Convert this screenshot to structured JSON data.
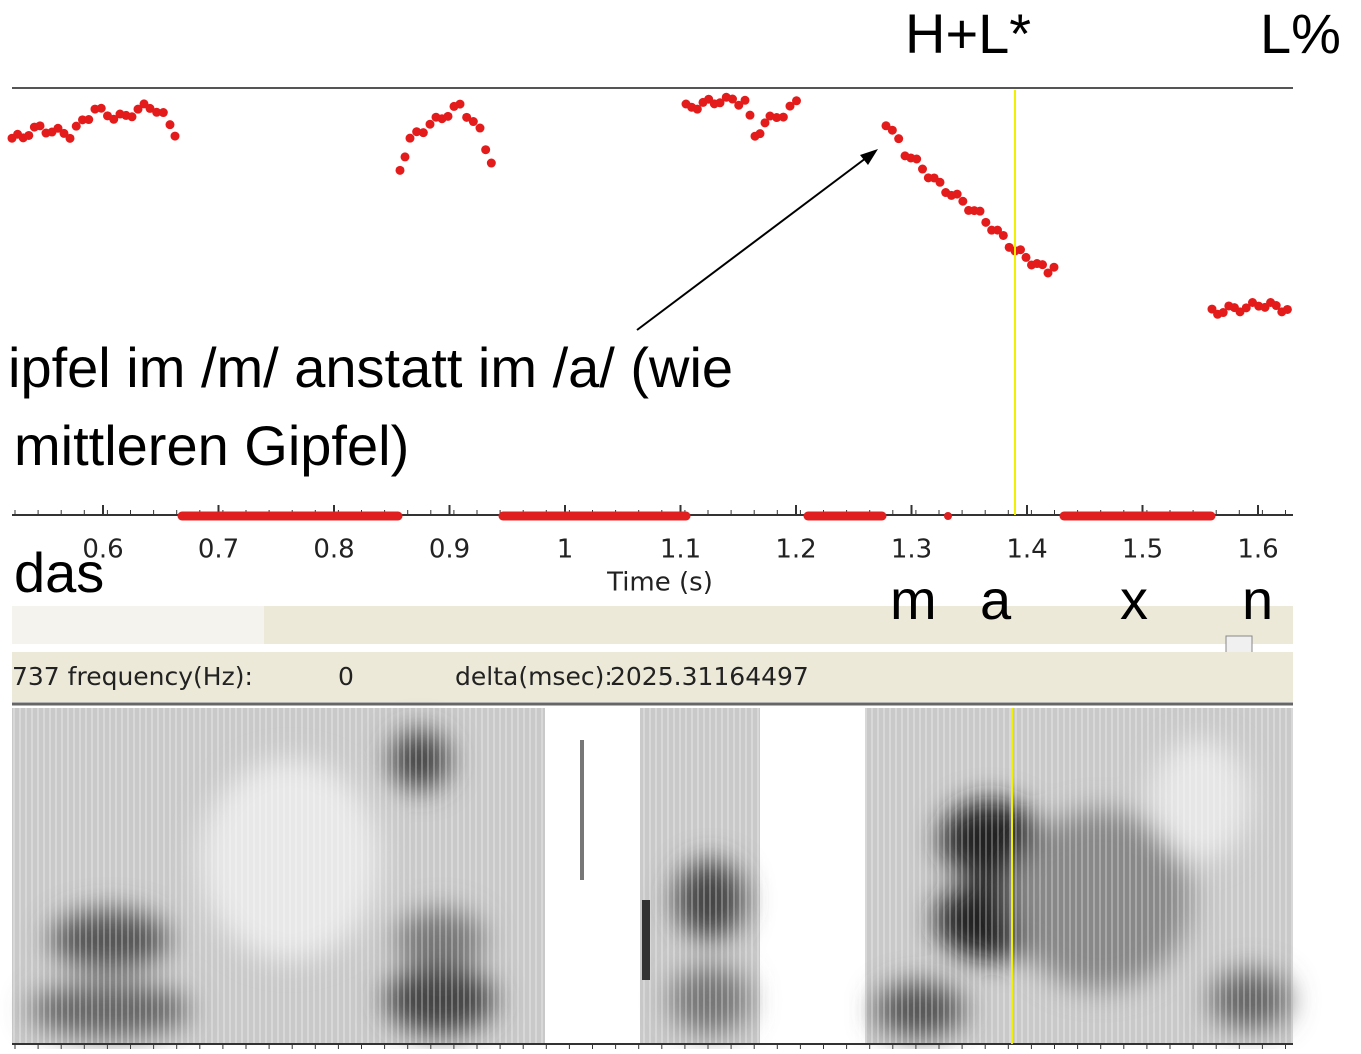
{
  "annotations": {
    "tones": [
      "H+L*",
      "L%"
    ],
    "comment": [
      "ipfel im /m/ anstatt  im /a/ (wie",
      "mittleren Gipfel)"
    ],
    "segments": [
      "das",
      "m",
      "a",
      "x",
      "n"
    ]
  },
  "time_axis": {
    "label": "Time (s)",
    "ticks": [
      0.6,
      0.7,
      0.8,
      0.9,
      1,
      1.1,
      1.2,
      1.3,
      1.4,
      1.5,
      1.6
    ]
  },
  "status_bar": {
    "fields": [
      "737 frequency(Hz):",
      "0",
      "delta(msec):",
      "2025.31164497"
    ]
  }
}
